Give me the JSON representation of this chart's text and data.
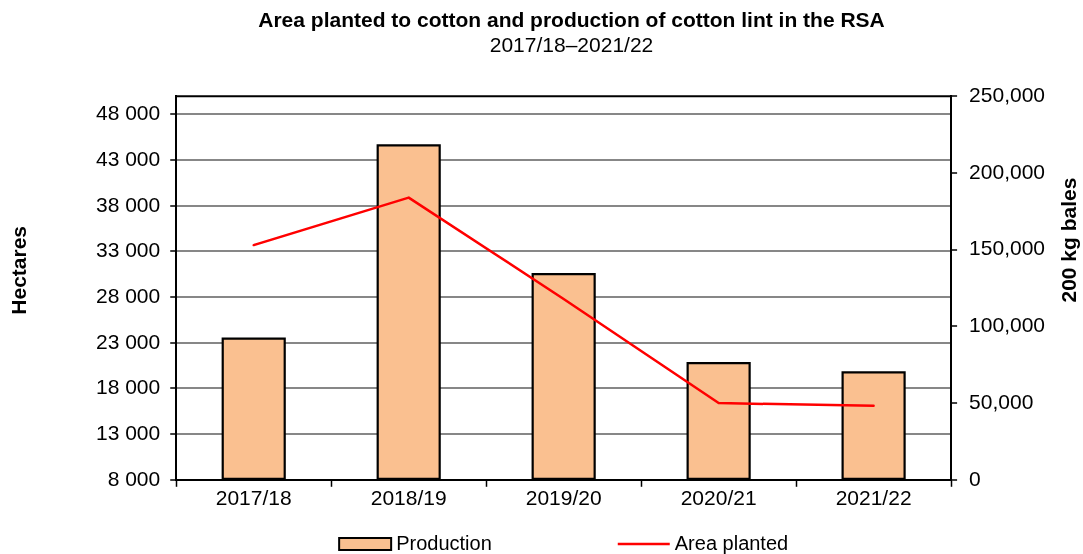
{
  "chart_data": {
    "type": "bar",
    "title": "Area planted to cotton and production of cotton lint in the RSA",
    "subtitle": "2017/18–2021/22",
    "ylabel": "Hectares",
    "y2label": "200 kg bales",
    "categories": [
      "2017/18",
      "2018/19",
      "2019/20",
      "2020/21",
      "2021/22"
    ],
    "series": [
      {
        "name": "Production",
        "axis": "y2",
        "color": "#fac090",
        "values": [
          92000,
          218000,
          134000,
          76000,
          70000
        ]
      },
      {
        "name": "Area planted",
        "type": "line",
        "color": "#ff0000",
        "values": [
          33700,
          38900,
          27800,
          16400,
          16100
        ]
      }
    ],
    "ylim": [
      8000,
      50000
    ],
    "yticks": [
      {
        "value": 8000,
        "label": "8 000"
      },
      {
        "value": 13000,
        "label": "13 000"
      },
      {
        "value": 18000,
        "label": "18 000"
      },
      {
        "value": 23000,
        "label": "23 000"
      },
      {
        "value": 28000,
        "label": "28 000"
      },
      {
        "value": 33000,
        "label": "33 000"
      },
      {
        "value": 38000,
        "label": "38 000"
      },
      {
        "value": 43000,
        "label": "43 000"
      },
      {
        "value": 48000,
        "label": "48 000"
      }
    ],
    "y2lim": [
      0,
      250000
    ],
    "y2ticks": [
      0,
      {
        "value": 50000,
        "label": "50,000"
      },
      {
        "value": 100000,
        "label": "100,000"
      },
      {
        "value": 150000,
        "label": "150,000"
      },
      {
        "value": 200000,
        "label": "200,000"
      },
      {
        "value": 250000,
        "label": "250,000"
      }
    ],
    "grid": "y",
    "legend": "bottom"
  }
}
